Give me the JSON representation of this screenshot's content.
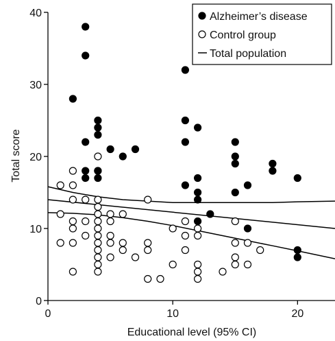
{
  "chart_data": {
    "type": "scatter",
    "title": "",
    "xlabel": "Educational level (95% CI)",
    "ylabel": "Total score",
    "xlim": [
      0,
      23
    ],
    "ylim": [
      0,
      40
    ],
    "xticks": [
      0,
      10,
      20
    ],
    "yticks": [
      0,
      10,
      20,
      30,
      40
    ],
    "grid": false,
    "legend_position": "top-right",
    "colors": {
      "ink": "#000000",
      "background": "#ffffff"
    },
    "legend": [
      {
        "label": "Alzheimer’s disease",
        "marker": "filled-circle"
      },
      {
        "label": "Control group",
        "marker": "open-circle"
      },
      {
        "label": "Total population",
        "marker": "line"
      }
    ],
    "series": [
      {
        "name": "Alzheimer’s disease",
        "marker": "filled-circle",
        "points": [
          [
            2,
            28
          ],
          [
            3,
            38
          ],
          [
            3,
            34
          ],
          [
            3,
            22
          ],
          [
            3,
            18
          ],
          [
            3,
            17
          ],
          [
            4,
            25
          ],
          [
            4,
            24
          ],
          [
            4,
            23
          ],
          [
            4,
            18
          ],
          [
            4,
            17
          ],
          [
            5,
            21
          ],
          [
            6,
            20
          ],
          [
            7,
            21
          ],
          [
            11,
            32
          ],
          [
            11,
            25
          ],
          [
            11,
            22
          ],
          [
            11,
            16
          ],
          [
            12,
            24
          ],
          [
            12,
            17
          ],
          [
            12,
            15
          ],
          [
            12,
            14
          ],
          [
            12,
            11
          ],
          [
            13,
            12
          ],
          [
            15,
            22
          ],
          [
            15,
            20
          ],
          [
            15,
            19
          ],
          [
            15,
            15
          ],
          [
            16,
            16
          ],
          [
            16,
            10
          ],
          [
            18,
            19
          ],
          [
            18,
            18
          ],
          [
            20,
            17
          ],
          [
            20,
            7
          ],
          [
            20,
            6
          ]
        ]
      },
      {
        "name": "Control group",
        "marker": "open-circle",
        "points": [
          [
            1,
            16
          ],
          [
            1,
            12
          ],
          [
            1,
            8
          ],
          [
            2,
            18
          ],
          [
            2,
            16
          ],
          [
            2,
            14
          ],
          [
            2,
            11
          ],
          [
            2,
            10
          ],
          [
            2,
            8
          ],
          [
            2,
            4
          ],
          [
            3,
            14
          ],
          [
            3,
            11
          ],
          [
            3,
            9
          ],
          [
            4,
            20
          ],
          [
            4,
            18
          ],
          [
            4,
            14
          ],
          [
            4,
            13
          ],
          [
            4,
            12
          ],
          [
            4,
            11
          ],
          [
            4,
            10
          ],
          [
            4,
            9
          ],
          [
            4,
            8
          ],
          [
            4,
            7
          ],
          [
            4,
            6
          ],
          [
            4,
            5
          ],
          [
            4,
            4
          ],
          [
            5,
            12
          ],
          [
            5,
            11
          ],
          [
            5,
            9
          ],
          [
            5,
            8
          ],
          [
            5,
            6
          ],
          [
            6,
            12
          ],
          [
            6,
            8
          ],
          [
            6,
            7
          ],
          [
            7,
            6
          ],
          [
            8,
            14
          ],
          [
            8,
            8
          ],
          [
            8,
            7
          ],
          [
            8,
            3
          ],
          [
            9,
            3
          ],
          [
            10,
            10
          ],
          [
            10,
            5
          ],
          [
            11,
            11
          ],
          [
            11,
            9
          ],
          [
            11,
            7
          ],
          [
            12,
            10
          ],
          [
            12,
            9
          ],
          [
            12,
            5
          ],
          [
            12,
            4
          ],
          [
            12,
            3
          ],
          [
            14,
            4
          ],
          [
            15,
            11
          ],
          [
            15,
            8
          ],
          [
            15,
            6
          ],
          [
            15,
            5
          ],
          [
            16,
            8
          ],
          [
            16,
            5
          ],
          [
            17,
            7
          ]
        ]
      },
      {
        "name": "Total population",
        "type": "line",
        "style": "regression",
        "x": [
          0,
          23
        ],
        "y": [
          14.0,
          10.0
        ]
      }
    ],
    "confidence_band": {
      "x": [
        0,
        2,
        4,
        6,
        8,
        10,
        12,
        14,
        16,
        18,
        20,
        23
      ],
      "upper": [
        15.8,
        15.0,
        14.4,
        14.0,
        13.8,
        13.6,
        13.6,
        13.6,
        13.6,
        13.6,
        13.7,
        13.8
      ],
      "lower": [
        12.2,
        12.1,
        11.9,
        11.5,
        11.0,
        10.4,
        9.7,
        9.0,
        8.3,
        7.6,
        6.9,
        5.8
      ]
    }
  }
}
